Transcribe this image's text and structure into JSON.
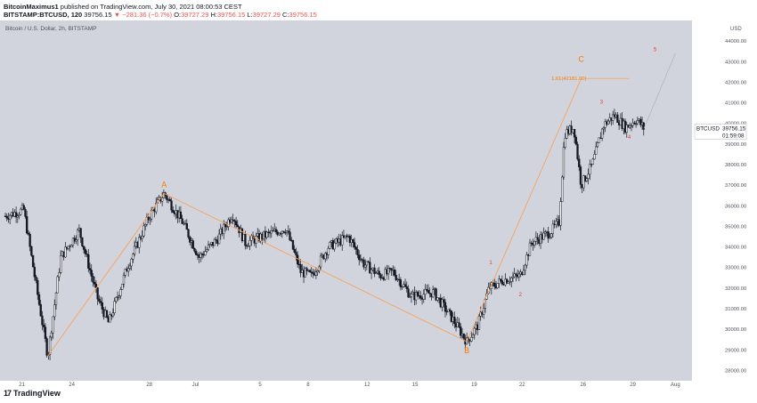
{
  "header": {
    "publisher": "BitcoinMaximus1",
    "published_text": "published on TradingView.com, July 30, 2021 08:00:53 CEST",
    "symbol": "BITSTAMP:BTCUSD, 120",
    "last": "39756.15",
    "change_arrow": "▼",
    "change": "−281.36 (−0.7%)",
    "o_label": "O:",
    "o": "39727.29",
    "h_label": "H:",
    "h": "39756.15",
    "l_label": "L:",
    "l": "39727.29",
    "c_label": "C:",
    "c": "39756.15"
  },
  "brand": {
    "logo_text": "17",
    "name": "TradingView"
  },
  "colors": {
    "plot_bg": "#d1d4dc",
    "candle": "#131722",
    "wave": "#f7a35c",
    "wave_label": "#f57c00",
    "count_label": "#e53935",
    "axis_text": "#50535e",
    "price_tag_bg": "#ffffff"
  },
  "chart_data": {
    "type": "candlestick",
    "title": "Bitcoin / U.S. Dollar, 2h, BITSTAMP",
    "ylabel": "USD",
    "ylim": [
      27500,
      45000
    ],
    "grid": false,
    "x_ticks": [
      "21",
      "24",
      "28",
      "Jul",
      "5",
      "8",
      "12",
      "15",
      "19",
      "22",
      "26",
      "29",
      "Aug"
    ],
    "y_ticks": [
      "28000.00",
      "29000.00",
      "30000.00",
      "31000.00",
      "32000.00",
      "33000.00",
      "34000.00",
      "35000.00",
      "36000.00",
      "37000.00",
      "38000.00",
      "39000.00",
      "40000.00",
      "41000.00",
      "42000.00",
      "43000.00",
      "44000.00"
    ],
    "price_path": [
      {
        "d": 0,
        "p": 35500
      },
      {
        "d": 1,
        "p": 35800
      },
      {
        "d": 1.6,
        "p": 32500
      },
      {
        "d": 2.3,
        "p": 28700
      },
      {
        "d": 3,
        "p": 33500
      },
      {
        "d": 4,
        "p": 34800
      },
      {
        "d": 5,
        "p": 31500
      },
      {
        "d": 5.6,
        "p": 30300
      },
      {
        "d": 6.6,
        "p": 33000
      },
      {
        "d": 7.8,
        "p": 35500
      },
      {
        "d": 8.6,
        "p": 36600
      },
      {
        "d": 9.6,
        "p": 35200
      },
      {
        "d": 10.5,
        "p": 33500
      },
      {
        "d": 11.5,
        "p": 34400
      },
      {
        "d": 12.3,
        "p": 35600
      },
      {
        "d": 13,
        "p": 34200
      },
      {
        "d": 14.2,
        "p": 34600
      },
      {
        "d": 15.2,
        "p": 34900
      },
      {
        "d": 16,
        "p": 32800
      },
      {
        "d": 16.6,
        "p": 32600
      },
      {
        "d": 17.5,
        "p": 34000
      },
      {
        "d": 18.6,
        "p": 34500
      },
      {
        "d": 19.4,
        "p": 33200
      },
      {
        "d": 20.3,
        "p": 32600
      },
      {
        "d": 21,
        "p": 32800
      },
      {
        "d": 22,
        "p": 31600
      },
      {
        "d": 23.2,
        "p": 31800
      },
      {
        "d": 24.3,
        "p": 30400
      },
      {
        "d": 25,
        "p": 29400
      },
      {
        "d": 25.6,
        "p": 30200
      },
      {
        "d": 26.2,
        "p": 32000
      },
      {
        "d": 27,
        "p": 32400
      },
      {
        "d": 27.9,
        "p": 32600
      },
      {
        "d": 28.5,
        "p": 34200
      },
      {
        "d": 29.5,
        "p": 34700
      },
      {
        "d": 30,
        "p": 35200
      },
      {
        "d": 30.3,
        "p": 39500
      },
      {
        "d": 30.8,
        "p": 39800
      },
      {
        "d": 31.2,
        "p": 37000
      },
      {
        "d": 31.8,
        "p": 38000
      },
      {
        "d": 32.4,
        "p": 39900
      },
      {
        "d": 33,
        "p": 40400
      },
      {
        "d": 33.6,
        "p": 39800
      },
      {
        "d": 34.2,
        "p": 40200
      },
      {
        "d": 34.6,
        "p": 39760
      }
    ],
    "wave_lines": [
      {
        "from": {
          "d": 2.3,
          "p": 28700
        },
        "to": {
          "d": 8.6,
          "p": 36600
        }
      },
      {
        "from": {
          "d": 8.6,
          "p": 36600
        },
        "to": {
          "d": 25,
          "p": 29400
        }
      },
      {
        "from": {
          "d": 25,
          "p": 29400
        },
        "to": {
          "d": 31.2,
          "p": 42181
        }
      }
    ],
    "projection_line": {
      "from": {
        "d": 34.6,
        "p": 39760
      },
      "to": {
        "d": 36.3,
        "p": 43400
      }
    },
    "wave_labels": [
      {
        "text": "A",
        "d": 8.6,
        "p": 36900
      },
      {
        "text": "B",
        "d": 25,
        "p": 28850
      },
      {
        "text": "C",
        "d": 31.2,
        "p": 43000
      }
    ],
    "count_labels": [
      {
        "text": "1",
        "d": 26.3,
        "p": 33150
      },
      {
        "text": "2",
        "d": 27.9,
        "p": 31600
      },
      {
        "text": "3",
        "d": 32.3,
        "p": 40950
      },
      {
        "text": "4",
        "d": 33.8,
        "p": 39250
      },
      {
        "text": "5",
        "d": 35.2,
        "p": 43500
      }
    ],
    "fib_level": {
      "text": "1.61(42181.00)",
      "p": 42181,
      "d_from": 31.4,
      "d_to": 33.8
    },
    "last_price": {
      "symbol": "BTCUSD",
      "price": "39756.15",
      "countdown": "01:59:08",
      "p": 39756
    }
  }
}
